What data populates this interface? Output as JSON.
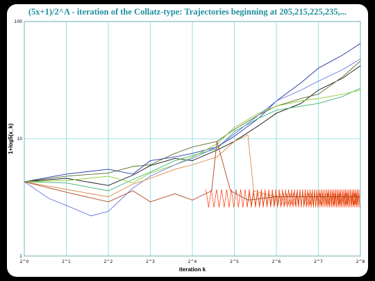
{
  "chart_data": {
    "type": "line",
    "title": "(5x+1)/2^A - iteration of the Collatz-type: Trajectories beginning at 205,215,225,235,...",
    "xlabel": "iteration k",
    "ylabel": "1+log5(x_k)",
    "x_scale": "log2",
    "y_scale": "log10",
    "xlim": [
      1,
      256
    ],
    "ylim": [
      1,
      100
    ],
    "x_ticks": [
      "2^0",
      "2^1",
      "2^2",
      "2^3",
      "2^4",
      "2^5",
      "2^6",
      "2^7",
      "2^8"
    ],
    "y_ticks": [
      "1",
      "10",
      "100"
    ],
    "grid": true,
    "legend": "none",
    "series": [
      {
        "color": "#2233aa",
        "points": [
          [
            1,
            4.3
          ],
          [
            2,
            5.0
          ],
          [
            4,
            5.5
          ],
          [
            6,
            5.0
          ],
          [
            8,
            6.5
          ],
          [
            12,
            7.0
          ],
          [
            16,
            7.5
          ],
          [
            24,
            8.5
          ],
          [
            32,
            10.5
          ],
          [
            48,
            15
          ],
          [
            64,
            21
          ],
          [
            96,
            30
          ],
          [
            128,
            40
          ],
          [
            192,
            52
          ],
          [
            256,
            65
          ]
        ]
      },
      {
        "color": "#111111",
        "points": [
          [
            1,
            4.3
          ],
          [
            2,
            4.6
          ],
          [
            4,
            4.0
          ],
          [
            6,
            4.9
          ],
          [
            8,
            5.9
          ],
          [
            12,
            6.8
          ],
          [
            16,
            6.5
          ],
          [
            24,
            8.0
          ],
          [
            32,
            9.5
          ],
          [
            48,
            13
          ],
          [
            64,
            16.5
          ],
          [
            96,
            20
          ],
          [
            128,
            26
          ],
          [
            192,
            33
          ],
          [
            256,
            42
          ]
        ]
      },
      {
        "color": "#556b2f",
        "points": [
          [
            1,
            4.3
          ],
          [
            2,
            4.8
          ],
          [
            4,
            5.1
          ],
          [
            6,
            5.8
          ],
          [
            8,
            6.0
          ],
          [
            12,
            7.5
          ],
          [
            16,
            8.5
          ],
          [
            24,
            9.5
          ],
          [
            32,
            12
          ],
          [
            48,
            16
          ],
          [
            64,
            19
          ],
          [
            96,
            22
          ],
          [
            128,
            24
          ],
          [
            192,
            34
          ],
          [
            256,
            46
          ]
        ]
      },
      {
        "color": "#3cb371",
        "points": [
          [
            1,
            4.3
          ],
          [
            2,
            4.2
          ],
          [
            4,
            3.6
          ],
          [
            6,
            4.5
          ],
          [
            8,
            5.2
          ],
          [
            12,
            6.5
          ],
          [
            16,
            7.2
          ],
          [
            24,
            8.2
          ],
          [
            32,
            11.5
          ],
          [
            48,
            15
          ],
          [
            64,
            17.5
          ],
          [
            96,
            19
          ],
          [
            128,
            20
          ],
          [
            192,
            23
          ],
          [
            256,
            27
          ]
        ]
      },
      {
        "color": "#88cc33",
        "points": [
          [
            1,
            4.3
          ],
          [
            2,
            4.4
          ],
          [
            4,
            4.8
          ],
          [
            6,
            4.2
          ],
          [
            8,
            5.1
          ],
          [
            12,
            6.0
          ],
          [
            16,
            7.0
          ],
          [
            24,
            9.0
          ],
          [
            32,
            12.5
          ],
          [
            48,
            16.5
          ],
          [
            64,
            19
          ],
          [
            96,
            21
          ],
          [
            128,
            22
          ],
          [
            192,
            24
          ],
          [
            256,
            26
          ]
        ]
      },
      {
        "color": "#6677dd",
        "points": [
          [
            1,
            4.3
          ],
          [
            1.5,
            3.1
          ],
          [
            2,
            2.7
          ],
          [
            3,
            2.2
          ],
          [
            4,
            2.4
          ],
          [
            6,
            3.8
          ],
          [
            8,
            4.8
          ],
          [
            12,
            6.0
          ],
          [
            16,
            6.8
          ],
          [
            24,
            8.5
          ],
          [
            32,
            11
          ],
          [
            48,
            16
          ],
          [
            64,
            21
          ],
          [
            96,
            26
          ],
          [
            128,
            31
          ],
          [
            192,
            39
          ],
          [
            256,
            48
          ]
        ]
      },
      {
        "color": "#dd8844",
        "points": [
          [
            1,
            4.3
          ],
          [
            2,
            3.7
          ],
          [
            4,
            3.2
          ],
          [
            6,
            4.1
          ],
          [
            8,
            4.6
          ],
          [
            12,
            5.5
          ],
          [
            16,
            6.0
          ],
          [
            24,
            7.0
          ],
          [
            32,
            9.5
          ],
          [
            40,
            10.8
          ],
          [
            44,
            3.6
          ],
          [
            64,
            3.2
          ],
          [
            128,
            3.2
          ],
          [
            256,
            3.2
          ]
        ]
      },
      {
        "color": "#aa4422",
        "points": [
          [
            1,
            4.3
          ],
          [
            2,
            3.5
          ],
          [
            4,
            2.9
          ],
          [
            6,
            3.6
          ],
          [
            8,
            2.9
          ],
          [
            12,
            3.4
          ],
          [
            16,
            3.0
          ],
          [
            22,
            3.6
          ],
          [
            24,
            9.5
          ],
          [
            30,
            3.6
          ],
          [
            40,
            3.0
          ],
          [
            64,
            3.2
          ],
          [
            128,
            3.2
          ],
          [
            256,
            3.2
          ]
        ]
      }
    ],
    "cycle_band": {
      "color": "#ff3300",
      "x_start": 20,
      "x_end": 256,
      "y_low": 2.6,
      "y_high": 3.7
    }
  }
}
